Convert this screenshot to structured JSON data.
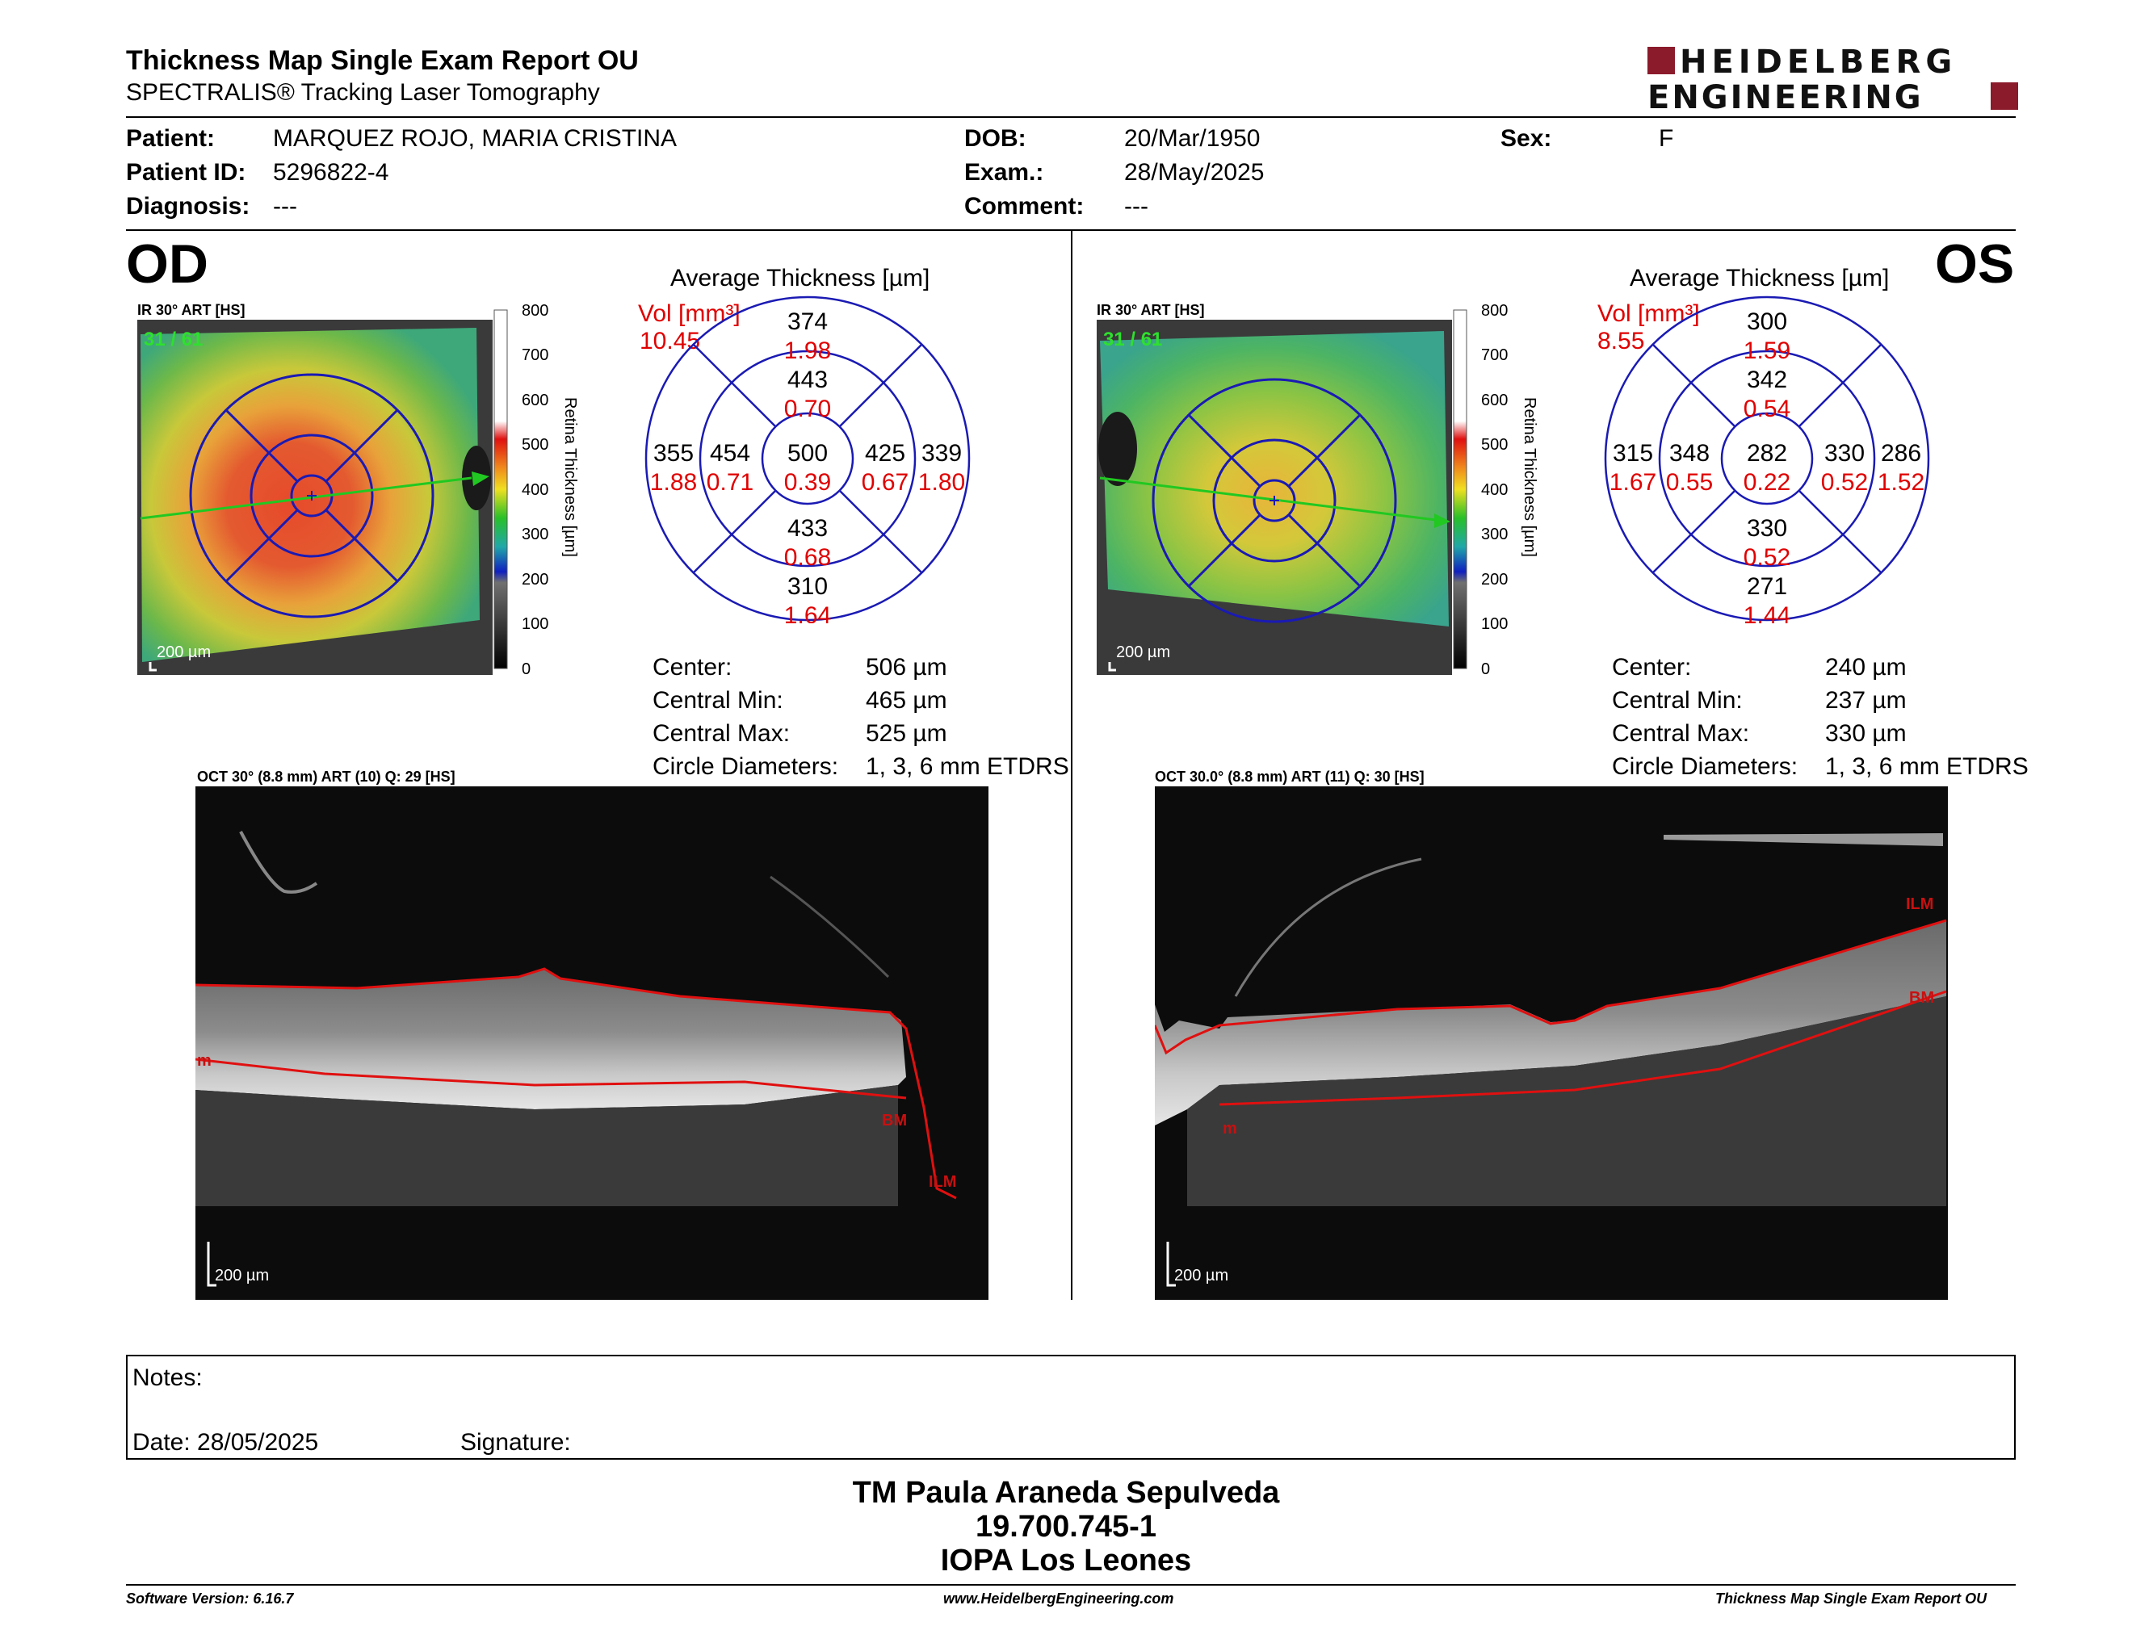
{
  "header": {
    "title": "Thickness Map Single Exam Report OU",
    "subtitle": "SPECTRALIS® Tracking Laser Tomography",
    "logo_line1": "HEIDELBERG",
    "logo_line2": "ENGINEERING",
    "logo_color": "#8b1a2b"
  },
  "patient": {
    "patient_label": "Patient:",
    "patient_value": "MARQUEZ ROJO, MARIA CRISTINA",
    "id_label": "Patient ID:",
    "id_value": "5296822-4",
    "diagnosis_label": "Diagnosis:",
    "diagnosis_value": "---",
    "dob_label": "DOB:",
    "dob_value": "20/Mar/1950",
    "exam_label": "Exam.:",
    "exam_value": "28/May/2025",
    "comment_label": "Comment:",
    "comment_value": "---",
    "sex_label": "Sex:",
    "sex_value": "F"
  },
  "od": {
    "eye": "OD",
    "ir_caption": "IR 30° ART [HS]",
    "frame_count": "31 / 61",
    "scale_bar": "200 µm",
    "colorbar_ticks": [
      "800",
      "700",
      "600",
      "500",
      "400",
      "300",
      "200",
      "100",
      "0"
    ],
    "colorbar_title": "Retina  Thickness [µm]",
    "avg_title": "Average Thickness [µm]",
    "vol_label": "Vol [mm³]",
    "vol_value": "10.45",
    "etdrs": {
      "center_t": "500",
      "center_v": "0.39",
      "inner_sup_t": "443",
      "inner_sup_v": "0.70",
      "inner_inf_t": "433",
      "inner_inf_v": "0.68",
      "inner_left_t": "454",
      "inner_left_v": "0.71",
      "inner_right_t": "425",
      "inner_right_v": "0.67",
      "outer_sup_t": "374",
      "outer_sup_v": "1.98",
      "outer_inf_t": "310",
      "outer_inf_v": "1.64",
      "outer_left_t": "355",
      "outer_left_v": "1.88",
      "outer_right_t": "339",
      "outer_right_v": "1.80"
    },
    "stats": [
      {
        "label": "Center:",
        "value": "506 µm"
      },
      {
        "label": "Central Min:",
        "value": "465 µm"
      },
      {
        "label": "Central Max:",
        "value": "525 µm"
      },
      {
        "label": "Circle Diameters:",
        "value": "1, 3, 6 mm ETDRS"
      }
    ],
    "oct_caption": "OCT 30° (8.8 mm) ART (10) Q: 29 [HS]",
    "oct_scale": "200 µm",
    "ilm_label": "ILM",
    "bm_label": "BM",
    "edge_label": "m"
  },
  "os": {
    "eye": "OS",
    "ir_caption": "IR 30° ART [HS]",
    "frame_count": "31 / 61",
    "scale_bar": "200 µm",
    "colorbar_ticks": [
      "800",
      "700",
      "600",
      "500",
      "400",
      "300",
      "200",
      "100",
      "0"
    ],
    "colorbar_title": "Retina  Thickness [µm]",
    "avg_title": "Average Thickness [µm]",
    "vol_label": "Vol [mm³]",
    "vol_value": "8.55",
    "etdrs": {
      "center_t": "282",
      "center_v": "0.22",
      "inner_sup_t": "342",
      "inner_sup_v": "0.54",
      "inner_inf_t": "330",
      "inner_inf_v": "0.52",
      "inner_left_t": "348",
      "inner_left_v": "0.55",
      "inner_right_t": "330",
      "inner_right_v": "0.52",
      "outer_sup_t": "300",
      "outer_sup_v": "1.59",
      "outer_inf_t": "271",
      "outer_inf_v": "1.44",
      "outer_left_t": "315",
      "outer_left_v": "1.67",
      "outer_right_t": "286",
      "outer_right_v": "1.52"
    },
    "stats": [
      {
        "label": "Center:",
        "value": "240 µm"
      },
      {
        "label": "Central Min:",
        "value": "237 µm"
      },
      {
        "label": "Central Max:",
        "value": "330 µm"
      },
      {
        "label": "Circle Diameters:",
        "value": "1, 3, 6 mm ETDRS"
      }
    ],
    "oct_caption": "OCT 30.0° (8.8 mm) ART (11) Q: 30 [HS]",
    "oct_scale": "200 µm",
    "ilm_label": "ILM",
    "bm_label": "BM",
    "edge_label": "m"
  },
  "notes": {
    "notes_label": "Notes:",
    "date_label": "Date: 28/05/2025",
    "signature_label": "Signature:"
  },
  "footer": {
    "line1": "TM Paula Araneda Sepulveda",
    "line2": "19.700.745-1",
    "line3": "IOPA Los Leones",
    "software": "Software Version: 6.16.7",
    "website": "www.HeidelbergEngineering.com",
    "report_name": "Thickness Map Single Exam Report OU"
  }
}
